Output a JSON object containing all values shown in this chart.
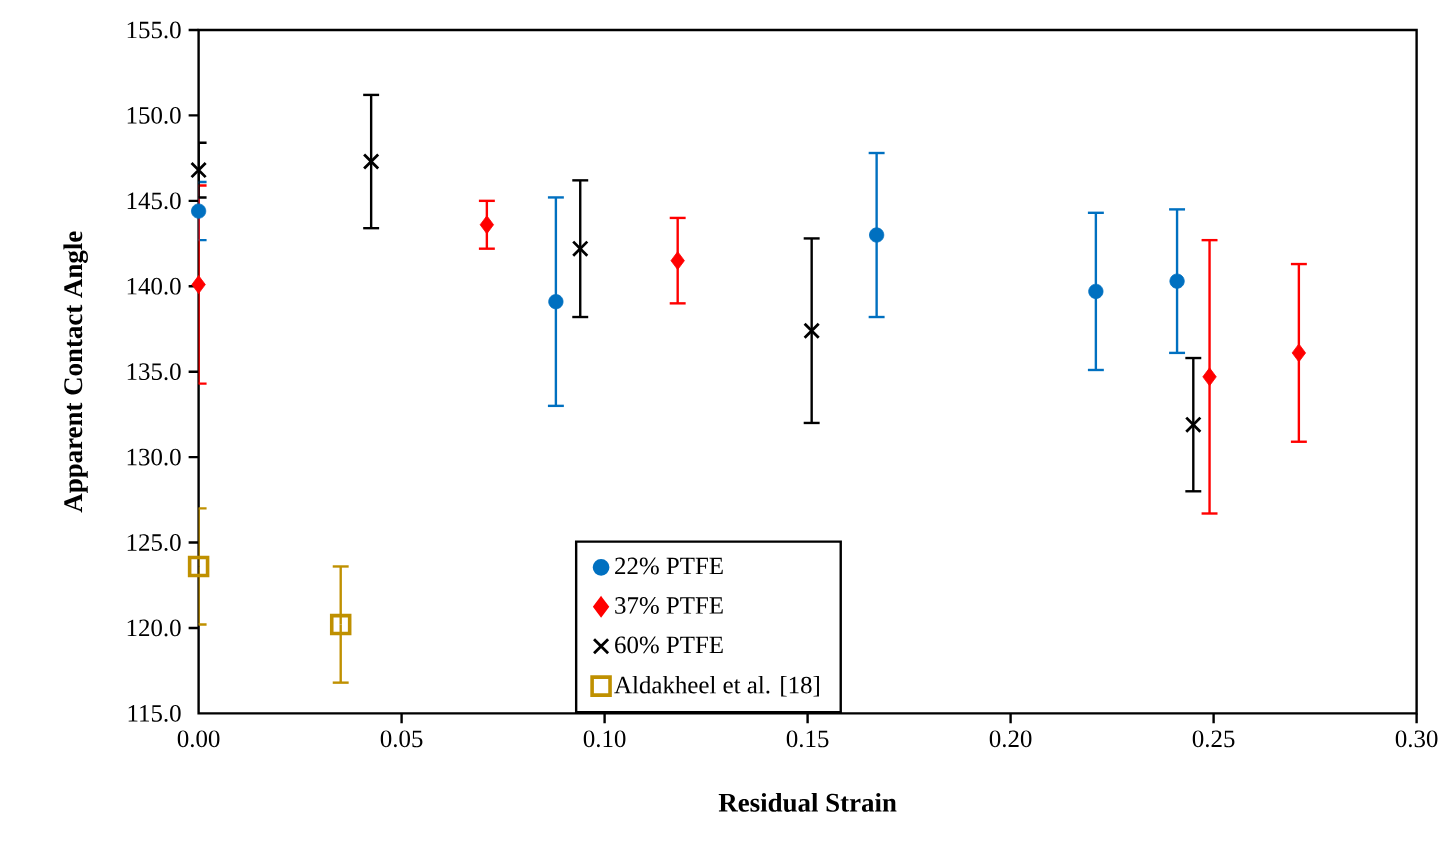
{
  "chart_data": {
    "type": "scatter",
    "xlabel": "Residual Strain",
    "ylabel": "Apparent Contact Angle",
    "xlim": [
      0,
      0.3
    ],
    "ylim": [
      115,
      155
    ],
    "xticks": [
      {
        "value": 0,
        "label": "0.00"
      },
      {
        "value": 0.05,
        "label": "0.05"
      },
      {
        "value": 0.1,
        "label": "0.10"
      },
      {
        "value": 0.15,
        "label": "0.15"
      },
      {
        "value": 0.2,
        "label": "0.20"
      },
      {
        "value": 0.25,
        "label": "0.25"
      },
      {
        "value": 0.3,
        "label": "0.30"
      }
    ],
    "yticks": [
      {
        "value": 115,
        "label": "115.0"
      },
      {
        "value": 120,
        "label": "120.0"
      },
      {
        "value": 125,
        "label": "125.0"
      },
      {
        "value": 130,
        "label": "130.0"
      },
      {
        "value": 135,
        "label": "135.0"
      },
      {
        "value": 140,
        "label": "140.0"
      },
      {
        "value": 145,
        "label": "145.0"
      },
      {
        "value": 150,
        "label": "150.0"
      },
      {
        "value": 155,
        "label": "155.0"
      }
    ],
    "legend": "bottom",
    "grid": false,
    "series": [
      {
        "name": "22% PTFE",
        "color": "#0070c0",
        "marker": "circle",
        "x": [
          0,
          0.088,
          0.167,
          0.221,
          0.241
        ],
        "values": [
          144.4,
          139.1,
          143.0,
          139.7,
          140.3
        ],
        "errors": [
          1.7,
          6.1,
          4.8,
          4.6,
          4.2
        ]
      },
      {
        "name": "37% PTFE",
        "color": "#ff0000",
        "marker": "diamond",
        "x": [
          0,
          0.071,
          0.118,
          0.249,
          0.271
        ],
        "values": [
          140.1,
          143.6,
          141.5,
          134.7,
          136.1
        ],
        "errors": [
          5.8,
          1.4,
          2.5,
          8.0,
          5.2
        ]
      },
      {
        "name": "60% PTFE",
        "color": "#000000",
        "marker": "cross",
        "x": [
          0,
          0.0425,
          0.094,
          0.151,
          0.245
        ],
        "values": [
          146.8,
          147.3,
          142.2,
          137.4,
          131.9
        ],
        "errors": [
          1.6,
          3.9,
          4.0,
          5.4,
          3.9
        ]
      },
      {
        "name": "Aldakheel et al. [18]",
        "color": "#bf9000",
        "marker": "square",
        "x": [
          0,
          0.035
        ],
        "values": [
          123.6,
          120.2
        ],
        "errors": [
          3.4,
          3.4
        ]
      }
    ]
  }
}
